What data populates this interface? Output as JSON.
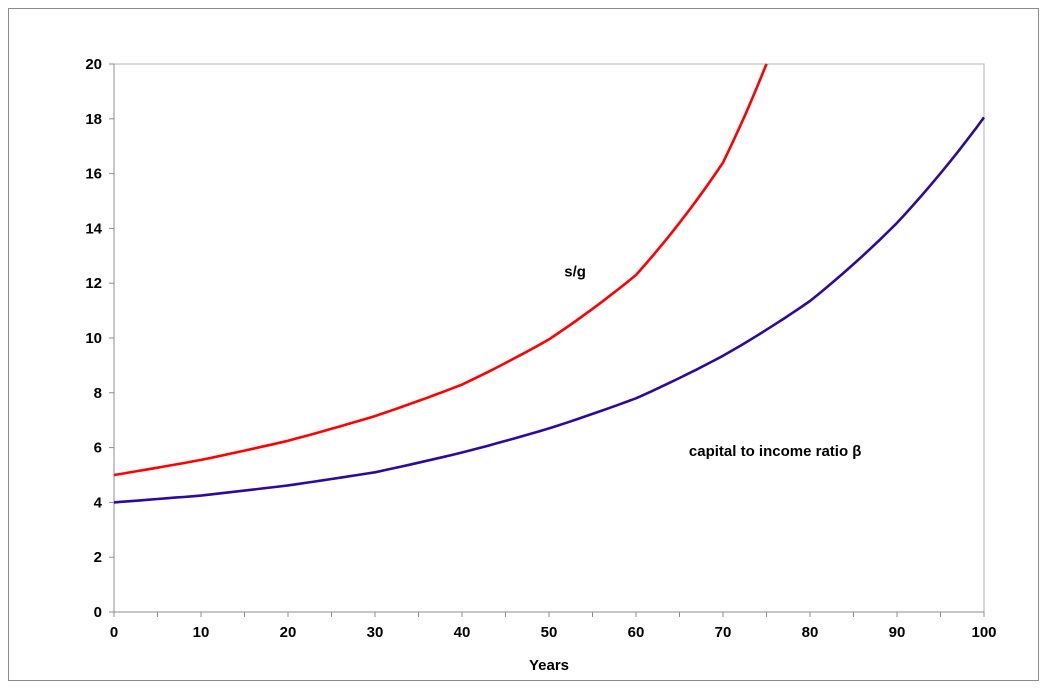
{
  "chart_data": {
    "type": "line",
    "title": "",
    "xlabel": "Years",
    "ylabel": "",
    "xlim": [
      0,
      100
    ],
    "ylim": [
      0,
      20
    ],
    "xticks": [
      0,
      10,
      20,
      30,
      40,
      50,
      60,
      70,
      80,
      90,
      100
    ],
    "yticks": [
      0,
      2,
      4,
      6,
      8,
      10,
      12,
      14,
      16,
      18,
      20
    ],
    "grid": false,
    "legend": "none",
    "series": [
      {
        "label": "s/g",
        "color": "#ff0000",
        "x": [
          0,
          10,
          20,
          30,
          40,
          50,
          60,
          70,
          75
        ],
        "y": [
          5.0,
          5.55,
          6.25,
          7.15,
          8.3,
          9.95,
          12.3,
          16.4,
          20.0
        ]
      },
      {
        "label": "capital to income ratio β",
        "color": "#2e0a99",
        "x": [
          0,
          10,
          20,
          30,
          40,
          50,
          60,
          70,
          80,
          90,
          100
        ],
        "y": [
          4.0,
          4.25,
          4.62,
          5.1,
          5.82,
          6.7,
          7.8,
          9.35,
          11.35,
          14.2,
          18.05
        ]
      }
    ],
    "annotations": [
      {
        "text": "s/g",
        "x": 53,
        "y": 12.25
      },
      {
        "text": "capital to income ratio β",
        "x": 76,
        "y": 5.7
      }
    ]
  }
}
